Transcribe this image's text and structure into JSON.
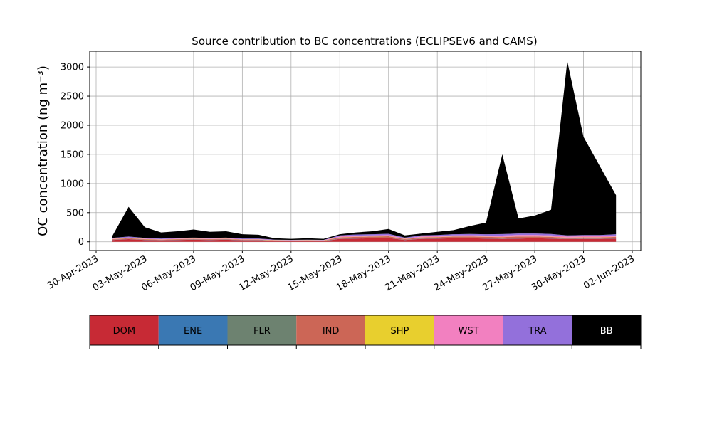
{
  "chart_data": {
    "type": "stacked_area",
    "title": "Source contribution to BC concentrations (ECLIPSEv6 and CAMS)",
    "ylabel": "OC concentration (ng m⁻³)",
    "x": [
      "2023-05-01",
      "2023-05-02",
      "2023-05-03",
      "2023-05-04",
      "2023-05-05",
      "2023-05-06",
      "2023-05-07",
      "2023-05-08",
      "2023-05-09",
      "2023-05-10",
      "2023-05-11",
      "2023-05-12",
      "2023-05-13",
      "2023-05-14",
      "2023-05-15",
      "2023-05-16",
      "2023-05-17",
      "2023-05-18",
      "2023-05-19",
      "2023-05-20",
      "2023-05-21",
      "2023-05-22",
      "2023-05-23",
      "2023-05-24",
      "2023-05-25",
      "2023-05-26",
      "2023-05-27",
      "2023-05-28",
      "2023-05-29",
      "2023-05-30",
      "2023-05-31",
      "2023-06-01"
    ],
    "series": [
      {
        "name": "DOM",
        "color": "#c72a35",
        "values": [
          30,
          45,
          30,
          25,
          30,
          35,
          30,
          35,
          25,
          25,
          15,
          12,
          15,
          12,
          50,
          55,
          60,
          65,
          30,
          50,
          55,
          60,
          60,
          55,
          50,
          55,
          60,
          55,
          45,
          50,
          50,
          55
        ]
      },
      {
        "name": "ENE",
        "color": "#3a78b3",
        "values": [
          3,
          3,
          3,
          3,
          3,
          3,
          3,
          3,
          3,
          3,
          3,
          3,
          3,
          3,
          3,
          3,
          3,
          3,
          3,
          3,
          3,
          3,
          3,
          3,
          3,
          3,
          3,
          3,
          3,
          3,
          3,
          3
        ]
      },
      {
        "name": "FLR",
        "color": "#6d8270",
        "values": [
          1,
          1,
          1,
          1,
          1,
          1,
          1,
          1,
          1,
          1,
          1,
          1,
          1,
          1,
          1,
          1,
          1,
          1,
          1,
          1,
          1,
          1,
          1,
          1,
          1,
          1,
          1,
          1,
          1,
          1,
          1,
          1
        ]
      },
      {
        "name": "IND",
        "color": "#cc6656",
        "values": [
          10,
          12,
          10,
          8,
          10,
          10,
          10,
          10,
          8,
          8,
          5,
          5,
          5,
          5,
          20,
          25,
          25,
          25,
          12,
          20,
          20,
          25,
          25,
          25,
          25,
          30,
          25,
          25,
          20,
          20,
          20,
          25
        ]
      },
      {
        "name": "SHP",
        "color": "#e8cf2e",
        "values": [
          3,
          3,
          3,
          3,
          3,
          3,
          3,
          3,
          3,
          3,
          3,
          3,
          3,
          3,
          3,
          3,
          3,
          3,
          3,
          3,
          3,
          3,
          3,
          3,
          3,
          3,
          3,
          3,
          3,
          3,
          3,
          3
        ]
      },
      {
        "name": "WST",
        "color": "#f280c0",
        "values": [
          8,
          10,
          8,
          6,
          8,
          8,
          8,
          8,
          6,
          6,
          4,
          4,
          4,
          4,
          15,
          18,
          18,
          18,
          10,
          15,
          15,
          18,
          20,
          20,
          25,
          25,
          25,
          22,
          18,
          18,
          18,
          20
        ]
      },
      {
        "name": "TRA",
        "color": "#9370db",
        "values": [
          12,
          15,
          12,
          10,
          12,
          12,
          12,
          12,
          10,
          10,
          6,
          5,
          6,
          5,
          18,
          20,
          20,
          22,
          12,
          18,
          18,
          20,
          22,
          22,
          25,
          25,
          25,
          25,
          20,
          20,
          20,
          22
        ]
      },
      {
        "name": "BB",
        "color": "#000000",
        "values": [
          33,
          511,
          183,
          104,
          113,
          138,
          103,
          108,
          74,
          64,
          23,
          17,
          23,
          17,
          20,
          35,
          50,
          83,
          39,
          30,
          55,
          70,
          136,
          201,
          1368,
          258,
          308,
          416,
          2990,
          1685,
          1185,
          671
        ]
      }
    ],
    "xlim": [
      "2023-04-30",
      "2023-06-02"
    ],
    "xticks": [
      {
        "value": "2023-04-30",
        "label": "30-Apr-2023"
      },
      {
        "value": "2023-05-03",
        "label": "03-May-2023"
      },
      {
        "value": "2023-05-06",
        "label": "06-May-2023"
      },
      {
        "value": "2023-05-09",
        "label": "09-May-2023"
      },
      {
        "value": "2023-05-12",
        "label": "12-May-2023"
      },
      {
        "value": "2023-05-15",
        "label": "15-May-2023"
      },
      {
        "value": "2023-05-18",
        "label": "18-May-2023"
      },
      {
        "value": "2023-05-21",
        "label": "21-May-2023"
      },
      {
        "value": "2023-05-24",
        "label": "24-May-2023"
      },
      {
        "value": "2023-05-27",
        "label": "27-May-2023"
      },
      {
        "value": "2023-05-30",
        "label": "30-May-2023"
      },
      {
        "value": "2023-06-02",
        "label": "02-Jun-2023"
      }
    ],
    "ylim": [
      -150,
      3270
    ],
    "yticks": [
      0,
      500,
      1000,
      1500,
      2000,
      2500,
      3000
    ],
    "grid": true,
    "legend": "bottom"
  }
}
